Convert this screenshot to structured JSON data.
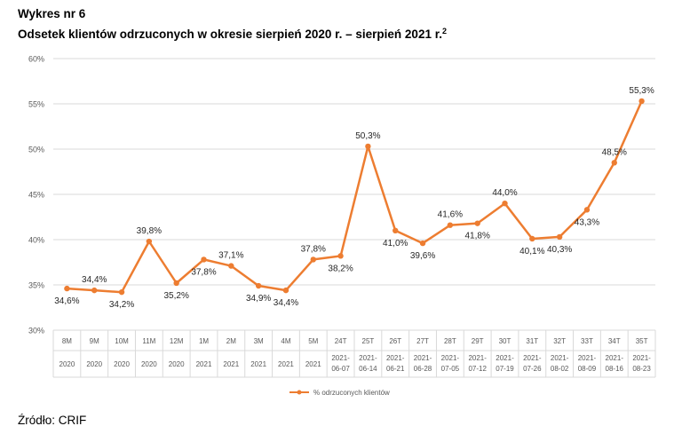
{
  "header": {
    "label": "Wykres nr 6",
    "title": "Odsetek klientów odrzuconych w okresie sierpień 2020 r. – sierpień 2021 r.",
    "footnote_mark": "2"
  },
  "source": "Źródło: CRIF",
  "chart_data": {
    "type": "line",
    "title": "Odsetek klientów odrzuconych w okresie sierpień 2020 r. – sierpień 2021 r.",
    "xlabel": "",
    "ylabel": "",
    "ylim": [
      30,
      60
    ],
    "yticks": [
      30,
      35,
      40,
      45,
      50,
      55,
      60
    ],
    "ytick_labels": [
      "30%",
      "35%",
      "40%",
      "45%",
      "50%",
      "55%",
      "60%"
    ],
    "grid": "horizontal",
    "legend_position": "bottom",
    "categories_top": [
      "8M",
      "9M",
      "10M",
      "11M",
      "12M",
      "1M",
      "2M",
      "3M",
      "4M",
      "5M",
      "24T",
      "25T",
      "26T",
      "27T",
      "28T",
      "29T",
      "30T",
      "31T",
      "32T",
      "33T",
      "34T",
      "35T"
    ],
    "categories_bottom": [
      [
        "2020"
      ],
      [
        "2020"
      ],
      [
        "2020"
      ],
      [
        "2020"
      ],
      [
        "2020"
      ],
      [
        "2021"
      ],
      [
        "2021"
      ],
      [
        "2021"
      ],
      [
        "2021"
      ],
      [
        "2021"
      ],
      [
        "2021-",
        "06-07"
      ],
      [
        "2021-",
        "06-14"
      ],
      [
        "2021-",
        "06-21"
      ],
      [
        "2021-",
        "06-28"
      ],
      [
        "2021-",
        "07-05"
      ],
      [
        "2021-",
        "07-12"
      ],
      [
        "2021-",
        "07-19"
      ],
      [
        "2021-",
        "07-26"
      ],
      [
        "2021-",
        "08-02"
      ],
      [
        "2021-",
        "08-09"
      ],
      [
        "2021-",
        "08-16"
      ],
      [
        "2021-",
        "08-23"
      ]
    ],
    "series": [
      {
        "name": "% odrzuconych klientów",
        "color": "#ED7D31",
        "values": [
          34.6,
          34.4,
          34.2,
          39.8,
          35.2,
          37.8,
          37.1,
          34.9,
          34.4,
          37.8,
          38.2,
          50.3,
          41.0,
          39.6,
          41.6,
          41.8,
          44.0,
          40.1,
          40.3,
          43.3,
          48.5,
          55.3
        ],
        "labels": [
          "34,6%",
          "34,4%",
          "34,2%",
          "39,8%",
          "35,2%",
          "37,8%",
          "37,1%",
          "34,9%",
          "34,4%",
          "37,8%",
          "38,2%",
          "50,3%",
          "41,0%",
          "39,6%",
          "41,6%",
          "41,8%",
          "44,0%",
          "40,1%",
          "40,3%",
          "43,3%",
          "48,5%",
          "55,3%"
        ],
        "label_positions": [
          "below",
          "above",
          "below",
          "above",
          "below",
          "below",
          "above",
          "below",
          "below",
          "above",
          "below",
          "above",
          "below",
          "below",
          "above",
          "below",
          "above",
          "below",
          "below",
          "below",
          "above",
          "above"
        ]
      }
    ]
  }
}
